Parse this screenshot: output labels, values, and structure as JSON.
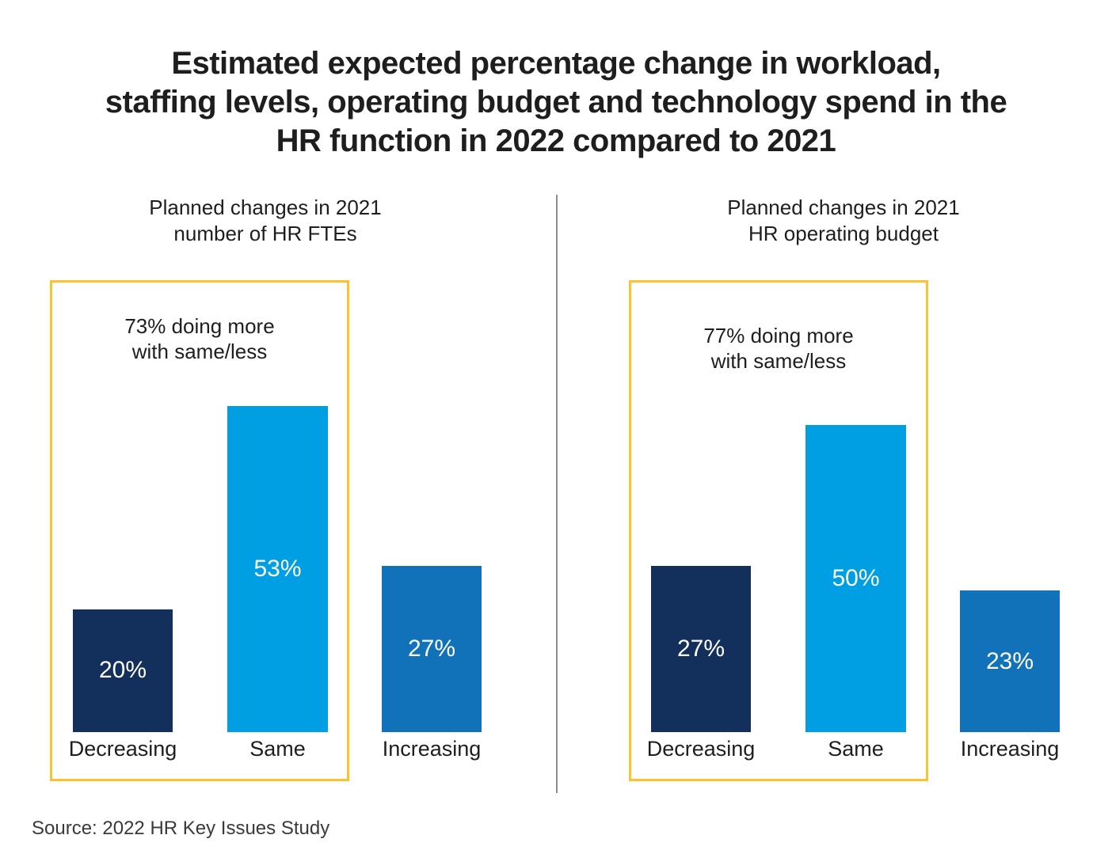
{
  "page": {
    "title": "Estimated expected percentage change in workload,\nstaffing levels, operating budget and technology spend in the\nHR function in 2022 compared to 2021",
    "source": "Source: 2022 HR Key Issues Study"
  },
  "colors": {
    "bar_decreasing": "#13305c",
    "bar_same": "#009fe3",
    "bar_increasing": "#1172b9",
    "highlight_box": "#fdc32e",
    "divider": "#8e8e8e"
  },
  "chart_data": [
    {
      "type": "bar",
      "title": "Planned changes in 2021\nnumber of HR FTEs",
      "annotation": "73% doing more\nwith same/less",
      "categories": [
        "Decreasing",
        "Same",
        "Increasing"
      ],
      "values": [
        20,
        53,
        27
      ],
      "value_labels": [
        "20%",
        "53%",
        "27%"
      ],
      "bar_colors": [
        "#13305c",
        "#009fe3",
        "#1172b9"
      ],
      "unit": "percent",
      "ylim": [
        0,
        60
      ],
      "grid": false,
      "legend": "none",
      "highlight_note": "yellow box encloses Decreasing and Same bars plus annotation"
    },
    {
      "type": "bar",
      "title": "Planned changes in 2021\nHR operating budget",
      "annotation": "77% doing more\nwith same/less",
      "categories": [
        "Decreasing",
        "Same",
        "Increasing"
      ],
      "values": [
        27,
        50,
        23
      ],
      "value_labels": [
        "27%",
        "50%",
        "23%"
      ],
      "bar_colors": [
        "#13305c",
        "#009fe3",
        "#1172b9"
      ],
      "unit": "percent",
      "ylim": [
        0,
        60
      ],
      "grid": false,
      "legend": "none",
      "highlight_note": "yellow box encloses Decreasing and Same bars plus annotation"
    }
  ]
}
